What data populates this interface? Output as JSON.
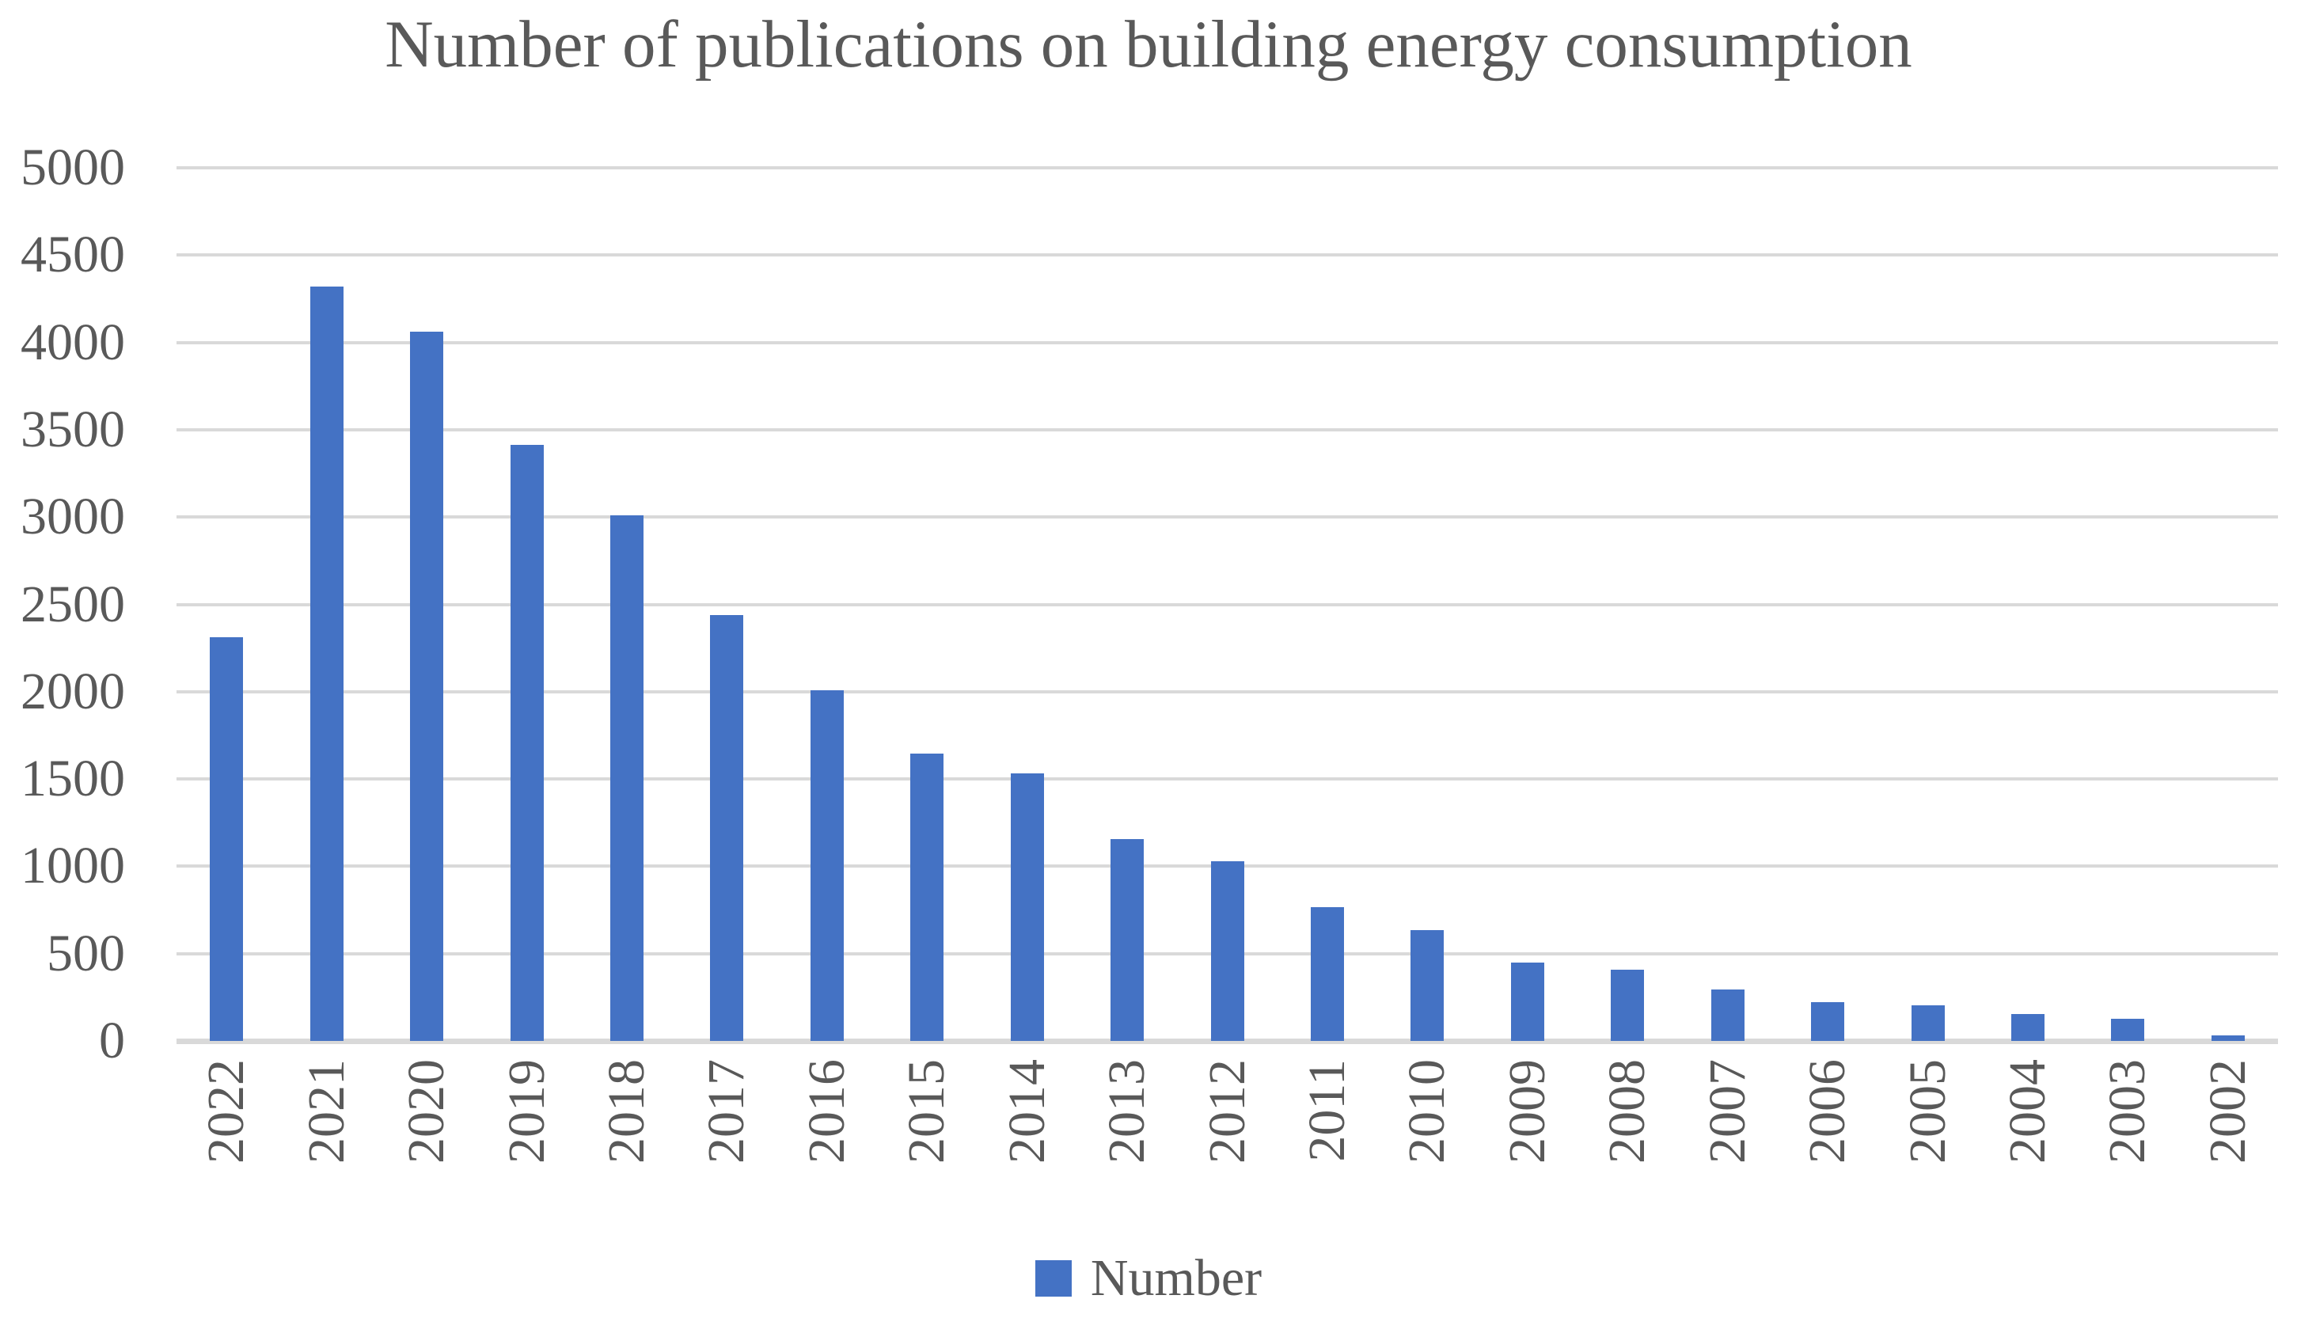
{
  "chart_data": {
    "type": "bar",
    "title": "Number of publications on building energy consumption",
    "categories": [
      "2022",
      "2021",
      "2020",
      "2019",
      "2018",
      "2017",
      "2016",
      "2015",
      "2014",
      "2013",
      "2012",
      "2011",
      "2010",
      "2009",
      "2008",
      "2007",
      "2006",
      "2005",
      "2004",
      "2003",
      "2002"
    ],
    "values": [
      2310,
      4320,
      4060,
      3415,
      3010,
      2440,
      2010,
      1645,
      1530,
      1155,
      1030,
      765,
      635,
      450,
      410,
      295,
      220,
      205,
      155,
      125,
      30
    ],
    "legend": [
      "Number"
    ],
    "xlabel": "",
    "ylabel": "",
    "ylim": [
      0,
      5000
    ],
    "ytick_step": 500,
    "yticks": [
      5000,
      4500,
      4000,
      3500,
      3000,
      2500,
      2000,
      1500,
      1000,
      500,
      0
    ],
    "grid": true,
    "legend_position": "bottom",
    "x_labels_rotation": -90,
    "colors": {
      "bar": "#4472C4",
      "gridline": "#D9D9D9",
      "axis_line": "#D9D9D9",
      "text": "#595959"
    }
  }
}
